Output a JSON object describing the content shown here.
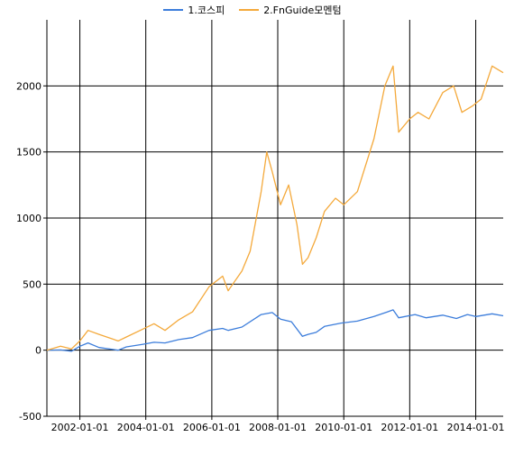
{
  "chart_data": {
    "type": "line",
    "title": "",
    "xlabel": "",
    "ylabel": "",
    "xlim": [
      "2001-01-01",
      "2014-11-01"
    ],
    "ylim": [
      -500,
      2500
    ],
    "grid": true,
    "legend_position": "top-center",
    "x_ticks": [
      "2002-01-01",
      "2004-01-01",
      "2006-01-01",
      "2008-01-01",
      "2010-01-01",
      "2012-01-01",
      "2014-01-01"
    ],
    "y_ticks": [
      -500,
      0,
      500,
      1000,
      1500,
      2000
    ],
    "series": [
      {
        "name": "1.코스피",
        "color": "#3c7ddb",
        "points": [
          [
            "2001-01-01",
            0
          ],
          [
            "2001-06-01",
            2
          ],
          [
            "2001-10-01",
            -8
          ],
          [
            "2002-01-01",
            30
          ],
          [
            "2002-04-01",
            55
          ],
          [
            "2002-08-01",
            20
          ],
          [
            "2003-03-01",
            0
          ],
          [
            "2003-06-01",
            25
          ],
          [
            "2003-12-01",
            45
          ],
          [
            "2004-04-01",
            60
          ],
          [
            "2004-08-01",
            55
          ],
          [
            "2005-01-01",
            80
          ],
          [
            "2005-06-01",
            95
          ],
          [
            "2005-12-01",
            150
          ],
          [
            "2006-05-01",
            165
          ],
          [
            "2006-07-01",
            150
          ],
          [
            "2006-12-01",
            175
          ],
          [
            "2007-07-01",
            270
          ],
          [
            "2007-11-01",
            285
          ],
          [
            "2008-02-01",
            235
          ],
          [
            "2008-06-01",
            215
          ],
          [
            "2008-10-01",
            105
          ],
          [
            "2008-12-01",
            120
          ],
          [
            "2009-03-01",
            135
          ],
          [
            "2009-06-01",
            180
          ],
          [
            "2009-12-01",
            205
          ],
          [
            "2010-06-01",
            220
          ],
          [
            "2010-12-01",
            255
          ],
          [
            "2011-05-01",
            290
          ],
          [
            "2011-07-01",
            305
          ],
          [
            "2011-09-01",
            245
          ],
          [
            "2012-03-01",
            270
          ],
          [
            "2012-07-01",
            245
          ],
          [
            "2013-01-01",
            265
          ],
          [
            "2013-06-01",
            240
          ],
          [
            "2013-10-01",
            270
          ],
          [
            "2014-01-01",
            255
          ],
          [
            "2014-07-01",
            275
          ],
          [
            "2014-11-01",
            260
          ]
        ]
      },
      {
        "name": "2.FnGuide모멘텀",
        "color": "#f4a93b",
        "points": [
          [
            "2001-01-01",
            0
          ],
          [
            "2001-06-01",
            30
          ],
          [
            "2001-10-01",
            10
          ],
          [
            "2002-01-01",
            70
          ],
          [
            "2002-04-01",
            150
          ],
          [
            "2002-08-01",
            120
          ],
          [
            "2003-03-01",
            70
          ],
          [
            "2003-06-01",
            100
          ],
          [
            "2003-12-01",
            160
          ],
          [
            "2004-04-01",
            200
          ],
          [
            "2004-08-01",
            150
          ],
          [
            "2005-01-01",
            230
          ],
          [
            "2005-06-01",
            290
          ],
          [
            "2005-12-01",
            480
          ],
          [
            "2006-05-01",
            560
          ],
          [
            "2006-07-01",
            450
          ],
          [
            "2006-12-01",
            600
          ],
          [
            "2007-03-01",
            750
          ],
          [
            "2007-07-01",
            1200
          ],
          [
            "2007-09-01",
            1500
          ],
          [
            "2007-11-01",
            1350
          ],
          [
            "2008-02-01",
            1100
          ],
          [
            "2008-05-01",
            1250
          ],
          [
            "2008-08-01",
            950
          ],
          [
            "2008-10-01",
            650
          ],
          [
            "2008-12-01",
            700
          ],
          [
            "2009-03-01",
            850
          ],
          [
            "2009-06-01",
            1050
          ],
          [
            "2009-10-01",
            1150
          ],
          [
            "2010-01-01",
            1100
          ],
          [
            "2010-06-01",
            1200
          ],
          [
            "2010-12-01",
            1600
          ],
          [
            "2011-04-01",
            2000
          ],
          [
            "2011-07-01",
            2150
          ],
          [
            "2011-09-01",
            1650
          ],
          [
            "2012-01-01",
            1750
          ],
          [
            "2012-04-01",
            1800
          ],
          [
            "2012-08-01",
            1750
          ],
          [
            "2013-01-01",
            1950
          ],
          [
            "2013-05-01",
            2000
          ],
          [
            "2013-08-01",
            1800
          ],
          [
            "2013-12-01",
            1850
          ],
          [
            "2014-03-01",
            1900
          ],
          [
            "2014-07-01",
            2150
          ],
          [
            "2014-11-01",
            2100
          ]
        ]
      }
    ]
  }
}
